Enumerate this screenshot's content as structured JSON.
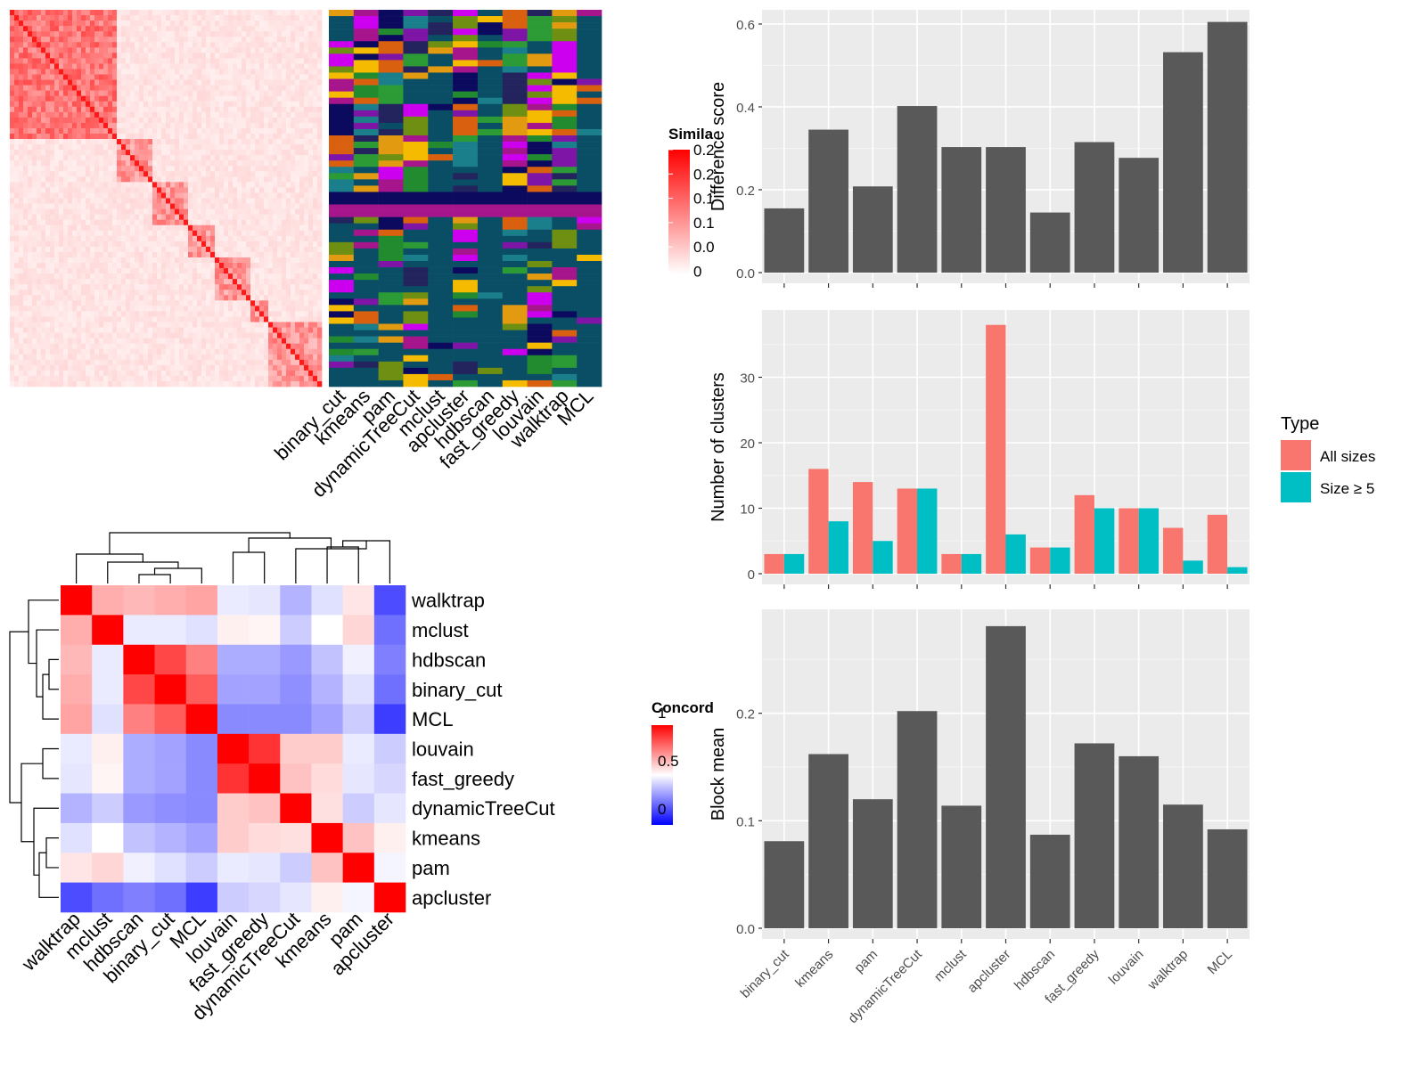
{
  "colors": {
    "heat_high": "#FF0000",
    "concord_high": "#FF0000",
    "concord_mid": "#FFFFFF",
    "concord_low": "#0000FF",
    "panel_bg": "#EBEBEB",
    "bar_gray": "#595959",
    "all_sizes": "#F8766D",
    "size_ge5": "#00BFC4",
    "class_palette": [
      "#0A4E66",
      "#E29A10",
      "#6E8F12",
      "#CC00EE",
      "#A6158C",
      "#F4BB00",
      "#0C0A5E",
      "#238B2F",
      "#D8600E",
      "#7E15A6",
      "#1B7F8B",
      "#2C9B36",
      "#23235E"
    ]
  },
  "similarity_heatmap": {
    "legend_title": "Simila",
    "legend_ticks": [
      "0.2",
      "0.2",
      "0.1",
      "0.1",
      "0.0",
      "0"
    ],
    "columns": [
      "binary_cut",
      "kmeans",
      "pam",
      "dynamicTreeCut",
      "mclust",
      "apcluster",
      "hdbscan",
      "fast_greedy",
      "louvain",
      "walktrap",
      "MCL"
    ]
  },
  "concordance_heatmap": {
    "legend_title": "Concord",
    "legend_ticks": [
      "1",
      "0.5",
      "0"
    ],
    "labels": [
      "walktrap",
      "mclust",
      "hdbscan",
      "binary_cut",
      "MCL",
      "louvain",
      "fast_greedy",
      "dynamicTreeCut",
      "kmeans",
      "pam",
      "apcluster"
    ],
    "matrix": [
      [
        1.0,
        0.66,
        0.64,
        0.66,
        0.68,
        0.46,
        0.45,
        0.35,
        0.44,
        0.55,
        0.15
      ],
      [
        0.66,
        1.0,
        0.46,
        0.46,
        0.44,
        0.53,
        0.52,
        0.4,
        0.5,
        0.58,
        0.22
      ],
      [
        0.64,
        0.46,
        1.0,
        0.86,
        0.75,
        0.34,
        0.34,
        0.3,
        0.38,
        0.47,
        0.25
      ],
      [
        0.66,
        0.46,
        0.86,
        1.0,
        0.82,
        0.32,
        0.32,
        0.28,
        0.35,
        0.44,
        0.22
      ],
      [
        0.68,
        0.44,
        0.75,
        0.82,
        1.0,
        0.27,
        0.27,
        0.27,
        0.32,
        0.4,
        0.12
      ],
      [
        0.46,
        0.53,
        0.34,
        0.32,
        0.27,
        1.0,
        0.9,
        0.6,
        0.6,
        0.46,
        0.4
      ],
      [
        0.45,
        0.52,
        0.34,
        0.32,
        0.27,
        0.9,
        1.0,
        0.62,
        0.57,
        0.45,
        0.42
      ],
      [
        0.35,
        0.4,
        0.3,
        0.28,
        0.27,
        0.6,
        0.62,
        1.0,
        0.56,
        0.4,
        0.45
      ],
      [
        0.44,
        0.5,
        0.38,
        0.35,
        0.32,
        0.6,
        0.57,
        0.56,
        1.0,
        0.62,
        0.53
      ],
      [
        0.55,
        0.58,
        0.47,
        0.44,
        0.4,
        0.46,
        0.45,
        0.4,
        0.62,
        1.0,
        0.48
      ],
      [
        0.15,
        0.22,
        0.25,
        0.22,
        0.12,
        0.4,
        0.42,
        0.45,
        0.53,
        0.48,
        1.0
      ]
    ]
  },
  "chart_data": [
    {
      "type": "bar",
      "ylabel": "Difference score",
      "xlabel": "",
      "categories": [
        "binary_cut",
        "kmeans",
        "pam",
        "dynamicTreeCut",
        "mclust",
        "apcluster",
        "hdbscan",
        "fast_greedy",
        "louvain",
        "walktrap",
        "MCL"
      ],
      "values": [
        0.155,
        0.345,
        0.208,
        0.402,
        0.303,
        0.303,
        0.145,
        0.315,
        0.277,
        0.532,
        0.605
      ],
      "ylim": [
        0,
        0.63
      ],
      "yticks": [
        0.0,
        0.2,
        0.4,
        0.6
      ],
      "ytick_labels": [
        "0.0",
        "0.2",
        "0.4",
        "0.6"
      ],
      "grid": true
    },
    {
      "type": "bar",
      "ylabel": "Number of clusters",
      "xlabel": "",
      "categories": [
        "binary_cut",
        "kmeans",
        "pam",
        "dynamicTreeCut",
        "mclust",
        "apcluster",
        "hdbscan",
        "fast_greedy",
        "louvain",
        "walktrap",
        "MCL"
      ],
      "series": [
        {
          "name": "All sizes",
          "values": [
            3,
            16,
            14,
            13,
            3,
            38,
            4,
            12,
            10,
            7,
            9
          ]
        },
        {
          "name": "Size ≥ 5",
          "values": [
            3,
            8,
            5,
            13,
            3,
            6,
            4,
            10,
            10,
            2,
            1
          ]
        }
      ],
      "legend_title": "Type",
      "legend_position": "right",
      "ylim": [
        0,
        40
      ],
      "yticks": [
        0,
        10,
        20,
        30
      ],
      "ytick_labels": [
        "0",
        "10",
        "20",
        "30"
      ],
      "grid": true
    },
    {
      "type": "bar",
      "ylabel": "Block mean",
      "xlabel": "",
      "categories": [
        "binary_cut",
        "kmeans",
        "pam",
        "dynamicTreeCut",
        "mclust",
        "apcluster",
        "hdbscan",
        "fast_greedy",
        "louvain",
        "walktrap",
        "MCL"
      ],
      "values": [
        0.081,
        0.162,
        0.12,
        0.202,
        0.114,
        0.281,
        0.087,
        0.172,
        0.16,
        0.115,
        0.092
      ],
      "ylim": [
        0,
        0.295
      ],
      "yticks": [
        0.0,
        0.1,
        0.2
      ],
      "ytick_labels": [
        "0.0",
        "0.1",
        "0.2"
      ],
      "grid": true
    }
  ]
}
